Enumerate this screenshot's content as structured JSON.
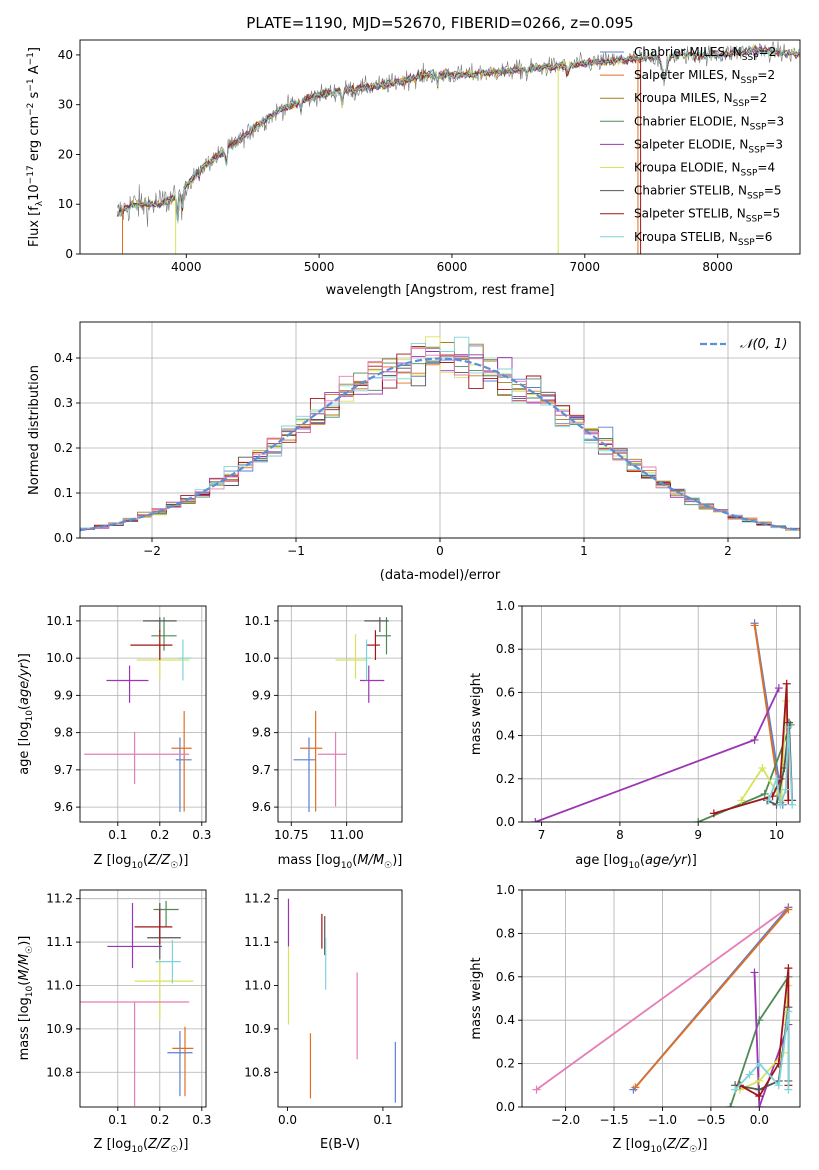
{
  "colors": {
    "chabrier_miles": "#5b7fd6",
    "salpeter_miles": "#e07020",
    "kroupa_miles": "#a87d1c",
    "chabrier_elodie": "#4f8a55",
    "salpeter_elodie": "#9b35b5",
    "kroupa_elodie": "#d6e45a",
    "chabrier_stelib": "#555555",
    "salpeter_stelib": "#a01518",
    "kroupa_stelib": "#7ed4dc",
    "pink": "#e57eb5",
    "gauss": "#5b8fd6"
  },
  "chart_data": [
    {
      "id": "spectrum",
      "type": "line",
      "title": "PLATE=1190, MJD=52670, FIBERID=0266, z=0.095",
      "xlabel": "wavelength [Angstrom, rest frame]",
      "ylabel": "Flux [fλ10⁻¹⁷ erg cm⁻² s⁻¹ A⁻¹]",
      "xlim": [
        3200,
        8620
      ],
      "ylim": [
        0,
        43
      ],
      "xticks": [
        4000,
        5000,
        6000,
        7000,
        8000
      ],
      "yticks": [
        0,
        10,
        20,
        30,
        40
      ],
      "grid": false,
      "legend_position": "right",
      "legend": [
        "Chabrier MILES, N_SSP=2",
        "Salpeter MILES, N_SSP=2",
        "Kroupa MILES, N_SSP=2",
        "Chabrier ELODIE, N_SSP=3",
        "Salpeter ELODIE, N_SSP=3",
        "Kroupa ELODIE, N_SSP=4",
        "Chabrier STELIB, N_SSP=5",
        "Salpeter STELIB, N_SSP=5",
        "Kroupa STELIB, N_SSP=6"
      ],
      "continuum": [
        [
          3480,
          8
        ],
        [
          3600,
          10
        ],
        [
          3800,
          10
        ],
        [
          3950,
          12
        ],
        [
          4100,
          17
        ],
        [
          4300,
          21
        ],
        [
          4500,
          25
        ],
        [
          4700,
          29
        ],
        [
          5000,
          32
        ],
        [
          5200,
          33
        ],
        [
          5500,
          34
        ],
        [
          5800,
          36
        ],
        [
          6100,
          36
        ],
        [
          6500,
          37
        ],
        [
          6900,
          38
        ],
        [
          7300,
          39
        ],
        [
          7700,
          40
        ],
        [
          8000,
          40
        ],
        [
          8300,
          41
        ],
        [
          8620,
          40
        ]
      ]
    },
    {
      "id": "residuals",
      "type": "line",
      "xlabel": "(data-model)/error",
      "ylabel": "Normed distribution",
      "xlim": [
        -2.5,
        2.5
      ],
      "ylim": [
        0,
        0.48
      ],
      "xticks": [
        -2,
        -1,
        0,
        1,
        2
      ],
      "yticks": [
        0.0,
        0.1,
        0.2,
        0.3,
        0.4
      ],
      "grid": true,
      "legend_position": "top-right",
      "legend": [
        "𝒩(0, 1)"
      ],
      "bin_width": 0.1
    },
    {
      "id": "age_vs_z",
      "type": "scatter",
      "xlabel": "Z [log10(Z/Z☉)]",
      "ylabel": "age  [log10(age/yr)]",
      "xlim": [
        0.01,
        0.31
      ],
      "ylim": [
        9.56,
        10.14
      ],
      "xticks": [
        0.1,
        0.2,
        0.3
      ],
      "yticks": [
        9.6,
        9.7,
        9.8,
        9.9,
        10.0,
        10.1
      ],
      "grid": true,
      "points": [
        {
          "color": "chabrier_miles",
          "x": 0.248,
          "xerr": [
            0.01,
            0.028
          ],
          "y": 9.727,
          "yerr": [
            0.14,
            0.06
          ]
        },
        {
          "color": "salpeter_miles",
          "x": 0.258,
          "xerr": [
            0.03,
            0.018
          ],
          "y": 9.758,
          "yerr": [
            0.17,
            0.1
          ]
        },
        {
          "color": "chabrier_elodie",
          "x": 0.21,
          "xerr": [
            0.03,
            0.03
          ],
          "y": 10.06,
          "yerr": [
            0.04,
            0.05
          ]
        },
        {
          "color": "salpeter_elodie",
          "x": 0.128,
          "xerr": [
            0.055,
            0.045
          ],
          "y": 9.94,
          "yerr": [
            0.06,
            0.04
          ]
        },
        {
          "color": "kroupa_elodie",
          "x": 0.2,
          "xerr": [
            0.055,
            0.07
          ],
          "y": 9.995,
          "yerr": [
            0.05,
            0.07
          ]
        },
        {
          "color": "chabrier_stelib",
          "x": 0.2,
          "xerr": [
            0.04,
            0.04
          ],
          "y": 10.1,
          "yerr": [
            0.03,
            0.01
          ]
        },
        {
          "color": "salpeter_stelib",
          "x": 0.2,
          "xerr": [
            0.07,
            0.03
          ],
          "y": 10.035,
          "yerr": [
            0.04,
            0.04
          ]
        },
        {
          "color": "kroupa_stelib",
          "x": 0.255,
          "xerr": [
            0.01,
            0.02
          ],
          "y": 10.0,
          "yerr": [
            0.06,
            0.05
          ]
        },
        {
          "color": "pink",
          "x": 0.14,
          "xerr": [
            0.12,
            0.13
          ],
          "y": 9.742,
          "yerr": [
            0.08,
            0.06
          ]
        }
      ]
    },
    {
      "id": "age_vs_mass",
      "type": "scatter",
      "xlabel": "mass [log10(M/M☉)]",
      "ylabel": "",
      "xlim": [
        10.69,
        11.25
      ],
      "ylim": [
        9.56,
        10.14
      ],
      "xticks": [
        10.75,
        11.0
      ],
      "yticks": [
        9.6,
        9.7,
        9.8,
        9.9,
        10.0,
        10.1
      ],
      "grid": true,
      "points": [
        {
          "color": "chabrier_miles",
          "x": 10.83,
          "xerr": [
            0.07,
            0.03
          ],
          "y": 9.727,
          "yerr": [
            0.14,
            0.06
          ]
        },
        {
          "color": "salpeter_miles",
          "x": 10.86,
          "xerr": [
            0.07,
            0.03
          ],
          "y": 9.758,
          "yerr": [
            0.17,
            0.1
          ]
        },
        {
          "color": "chabrier_elodie",
          "x": 11.18,
          "xerr": [
            0.05,
            0.02
          ],
          "y": 10.06,
          "yerr": [
            0.05,
            0.05
          ]
        },
        {
          "color": "salpeter_elodie",
          "x": 11.1,
          "xerr": [
            0.04,
            0.07
          ],
          "y": 9.94,
          "yerr": [
            0.06,
            0.04
          ]
        },
        {
          "color": "kroupa_elodie",
          "x": 11.04,
          "xerr": [
            0.09,
            0.05
          ],
          "y": 9.995,
          "yerr": [
            0.05,
            0.07
          ]
        },
        {
          "color": "chabrier_stelib",
          "x": 11.15,
          "xerr": [
            0.07,
            0.04
          ],
          "y": 10.1,
          "yerr": [
            0.03,
            0.01
          ]
        },
        {
          "color": "salpeter_stelib",
          "x": 11.13,
          "xerr": [
            0.04,
            0.02
          ],
          "y": 10.035,
          "yerr": [
            0.04,
            0.04
          ]
        },
        {
          "color": "kroupa_stelib",
          "x": 11.09,
          "xerr": [
            0.01,
            0.02
          ],
          "y": 10.0,
          "yerr": [
            0.06,
            0.05
          ]
        },
        {
          "color": "pink",
          "x": 10.95,
          "xerr": [
            0.08,
            0.05
          ],
          "y": 9.742,
          "yerr": [
            0.14,
            0.06
          ]
        }
      ]
    },
    {
      "id": "weight_vs_age",
      "type": "line",
      "xlabel": "age  [log10(age/yr)]",
      "ylabel": "mass weight",
      "xlim": [
        6.75,
        10.3
      ],
      "ylim": [
        0,
        1.0
      ],
      "xticks": [
        7,
        8,
        9,
        10
      ],
      "yticks": [
        0.0,
        0.2,
        0.4,
        0.6,
        0.8,
        1.0
      ],
      "grid": true,
      "series": [
        {
          "color": "chabrier_miles",
          "x": [
            9.72,
            10.08
          ],
          "y": [
            0.92,
            0.08
          ]
        },
        {
          "color": "salpeter_miles",
          "x": [
            9.72,
            10.05
          ],
          "y": [
            0.91,
            0.09
          ]
        },
        {
          "color": "chabrier_elodie",
          "x": [
            9.0,
            9.85,
            10.18
          ],
          "y": [
            0.0,
            0.13,
            0.45
          ]
        },
        {
          "color": "salpeter_elodie",
          "x": [
            6.92,
            9.72,
            10.03
          ],
          "y": [
            0.0,
            0.38,
            0.62
          ]
        },
        {
          "color": "kroupa_elodie",
          "x": [
            9.55,
            9.82,
            10.06,
            10.12
          ],
          "y": [
            0.1,
            0.25,
            0.1,
            0.56
          ]
        },
        {
          "color": "chabrier_stelib",
          "x": [
            9.88,
            10.0,
            10.1,
            10.16,
            10.2
          ],
          "y": [
            0.1,
            0.08,
            0.25,
            0.46,
            0.1
          ]
        },
        {
          "color": "salpeter_stelib",
          "x": [
            9.2,
            9.95,
            10.05,
            10.13,
            10.15
          ],
          "y": [
            0.04,
            0.12,
            0.2,
            0.64,
            0.1
          ]
        },
        {
          "color": "kroupa_stelib",
          "x": [
            9.9,
            10.0,
            10.05,
            10.12,
            10.15,
            10.2
          ],
          "y": [
            0.1,
            0.2,
            0.08,
            0.15,
            0.44,
            0.08
          ]
        }
      ]
    },
    {
      "id": "mass_vs_z",
      "type": "scatter",
      "xlabel": "Z [log10(Z/Z☉)]",
      "ylabel": "mass [log10(M/M☉)]",
      "xlim": [
        0.01,
        0.31
      ],
      "ylim": [
        10.72,
        11.22
      ],
      "xticks": [
        0.1,
        0.2,
        0.3
      ],
      "yticks": [
        10.8,
        10.9,
        11.0,
        11.1,
        11.2
      ],
      "grid": true,
      "points": [
        {
          "color": "chabrier_miles",
          "x": 0.248,
          "xerr": [
            0.03,
            0.03
          ],
          "y": 10.845,
          "yerr": [
            0.1,
            0.05
          ]
        },
        {
          "color": "salpeter_miles",
          "x": 0.26,
          "xerr": [
            0.03,
            0.02
          ],
          "y": 10.855,
          "yerr": [
            0.11,
            0.05
          ]
        },
        {
          "color": "chabrier_elodie",
          "x": 0.215,
          "xerr": [
            0.03,
            0.03
          ],
          "y": 11.175,
          "yerr": [
            0.04,
            0.02
          ]
        },
        {
          "color": "salpeter_elodie",
          "x": 0.135,
          "xerr": [
            0.06,
            0.07
          ],
          "y": 11.09,
          "yerr": [
            0.05,
            0.1
          ]
        },
        {
          "color": "kroupa_elodie",
          "x": 0.2,
          "xerr": [
            0.06,
            0.08
          ],
          "y": 11.01,
          "yerr": [
            0.09,
            0.05
          ]
        },
        {
          "color": "chabrier_stelib",
          "x": 0.2,
          "xerr": [
            0.03,
            0.05
          ],
          "y": 11.11,
          "yerr": [
            0.05,
            0.08
          ]
        },
        {
          "color": "salpeter_stelib",
          "x": 0.2,
          "xerr": [
            0.06,
            0.03
          ],
          "y": 11.135,
          "yerr": [
            0.04,
            0.04
          ]
        },
        {
          "color": "kroupa_stelib",
          "x": 0.23,
          "xerr": [
            0.04,
            0.02
          ],
          "y": 11.055,
          "yerr": [
            0.05,
            0.05
          ]
        },
        {
          "color": "pink",
          "x": 0.14,
          "xerr": [
            0.13,
            0.13
          ],
          "y": 10.962,
          "yerr": [
            0.24,
            0.0
          ]
        }
      ]
    },
    {
      "id": "mass_vs_ebv",
      "type": "scatter",
      "xlabel": "E(B-V)",
      "ylabel": "",
      "xlim": [
        -0.01,
        0.12
      ],
      "ylim": [
        10.72,
        11.22
      ],
      "xticks": [
        0.0,
        0.1
      ],
      "yticks": [
        10.8,
        10.9,
        11.0,
        11.1,
        11.2
      ],
      "grid": false,
      "points": [
        {
          "color": "chabrier_miles",
          "x": 0.113,
          "y": 10.8,
          "yerr": [
            0.07,
            0.07
          ]
        },
        {
          "color": "salpeter_miles",
          "x": 0.024,
          "y": 10.82,
          "yerr": [
            0.08,
            0.07
          ]
        },
        {
          "color": "kroupa_elodie",
          "x": 0.001,
          "y": 11.0,
          "yerr": [
            0.09,
            0.09
          ]
        },
        {
          "color": "salpeter_elodie",
          "x": 0.001,
          "y": 11.15,
          "yerr": [
            0.06,
            0.05
          ]
        },
        {
          "color": "salpeter_stelib",
          "x": 0.036,
          "y": 11.125,
          "yerr": [
            0.04,
            0.04
          ]
        },
        {
          "color": "chabrier_stelib",
          "x": 0.039,
          "y": 11.12,
          "yerr": [
            0.05,
            0.04
          ]
        },
        {
          "color": "kroupa_stelib",
          "x": 0.04,
          "y": 11.05,
          "yerr": [
            0.06,
            0.06
          ]
        },
        {
          "color": "pink",
          "x": 0.073,
          "y": 10.93,
          "yerr": [
            0.1,
            0.1
          ]
        }
      ]
    },
    {
      "id": "weight_vs_z",
      "type": "line",
      "xlabel": "Z [log10(Z/Z☉)]",
      "ylabel": "mass weight",
      "xlim": [
        -2.45,
        0.42
      ],
      "ylim": [
        0,
        1.0
      ],
      "xticks": [
        -2.0,
        -1.5,
        -1.0,
        -0.5,
        0.0
      ],
      "yticks": [
        0.0,
        0.2,
        0.4,
        0.6,
        0.8,
        1.0
      ],
      "grid": true,
      "series": [
        {
          "color": "pink",
          "x": [
            -2.3,
            0.3
          ],
          "y": [
            0.08,
            0.92
          ]
        },
        {
          "color": "chabrier_miles",
          "x": [
            -1.3,
            0.3
          ],
          "y": [
            0.08,
            0.92
          ]
        },
        {
          "color": "salpeter_miles",
          "x": [
            -1.28,
            0.3
          ],
          "y": [
            0.09,
            0.91
          ]
        },
        {
          "color": "chabrier_elodie",
          "x": [
            -0.3,
            0.0,
            0.3
          ],
          "y": [
            0.0,
            0.4,
            0.6
          ]
        },
        {
          "color": "salpeter_elodie",
          "x": [
            -0.05,
            0.0,
            0.3
          ],
          "y": [
            0.62,
            0.0,
            0.38
          ]
        },
        {
          "color": "kroupa_elodie",
          "x": [
            -0.2,
            0.0,
            0.25,
            0.3
          ],
          "y": [
            0.08,
            0.12,
            0.25,
            0.56
          ]
        },
        {
          "color": "chabrier_stelib",
          "x": [
            -0.25,
            0.0,
            0.2,
            0.3,
            0.3
          ],
          "y": [
            0.1,
            0.08,
            0.12,
            0.46,
            0.12
          ]
        },
        {
          "color": "salpeter_stelib",
          "x": [
            -0.2,
            0.0,
            0.2,
            0.3,
            0.3
          ],
          "y": [
            0.1,
            0.05,
            0.2,
            0.64,
            0.1
          ]
        },
        {
          "color": "kroupa_stelib",
          "x": [
            -0.25,
            -0.1,
            0.0,
            0.2,
            0.3,
            0.3
          ],
          "y": [
            0.08,
            0.15,
            0.2,
            0.1,
            0.44,
            0.08
          ]
        }
      ]
    }
  ]
}
